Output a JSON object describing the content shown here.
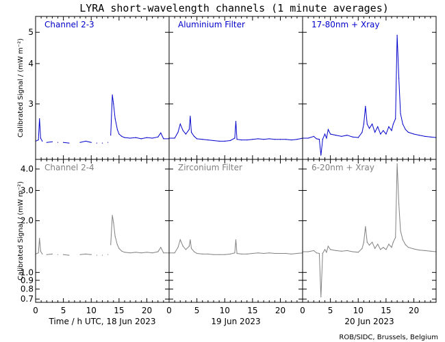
{
  "title": "LYRA short-wavelength channels (1 minute averages)",
  "credit": "ROB/SIDC, Brussels, Belgium",
  "colors": {
    "top": "#0000cc",
    "bottom": "#808080",
    "axes": "#000000"
  },
  "chart_data": {
    "type": "line",
    "grid": false,
    "rows": [
      {
        "ylabel": "Calibrated Signal / (mW m⁻²)",
        "yscale": "log",
        "ylim": [
          2.02,
          5.6
        ],
        "yticks": [
          3,
          4,
          5
        ],
        "ytick_labels": [
          "3",
          "4",
          "5"
        ]
      },
      {
        "ylabel": "Calibrated Signal / (mW m⁻²)",
        "yscale": "log",
        "ylim": [
          0.67,
          4.55
        ],
        "yticks": [
          0.7,
          0.8,
          0.9,
          1.0,
          2.0,
          3.0,
          4.0
        ],
        "ytick_labels": [
          "0.7",
          "0.8",
          "0.9",
          "1.0",
          "2.0",
          "3.0",
          "4.0"
        ]
      }
    ],
    "columns": [
      {
        "xlabel": "Time / h UTC, 18 Jun 2023",
        "xlim": [
          0,
          24
        ],
        "xticks": [
          0,
          5,
          10,
          15,
          20
        ],
        "xtick_labels": [
          "0",
          "5",
          "10",
          "15",
          "20"
        ]
      },
      {
        "xlabel": "19 Jun 2023",
        "xlim": [
          0,
          24
        ],
        "xticks": [
          0,
          5,
          10,
          15,
          20
        ],
        "xtick_labels": [
          "0",
          "5",
          "10",
          "15",
          "20"
        ]
      },
      {
        "xlabel": "20 Jun 2023",
        "xlim": [
          0,
          24
        ],
        "xticks": [
          0,
          5,
          10,
          15,
          20
        ],
        "xtick_labels": [
          "0",
          "5",
          "10",
          "15",
          "20"
        ]
      }
    ],
    "panels": [
      {
        "row": 0,
        "col": 0,
        "name": "Channel 2-3",
        "x": [
          0,
          0.5,
          0.7,
          0.9,
          1.2,
          2,
          3,
          4,
          5,
          6,
          8,
          9,
          10,
          11,
          12,
          13,
          13.5,
          13.8,
          14,
          14.3,
          14.7,
          15,
          15.5,
          16,
          17,
          18,
          19,
          20,
          21,
          22,
          22.5,
          23,
          24
        ],
        "y": [
          2.3,
          2.32,
          2.7,
          2.35,
          2.3,
          2.28,
          2.29,
          2.28,
          2.28,
          2.27,
          2.28,
          2.3,
          2.28,
          2.27,
          2.27,
          2.28,
          2.4,
          3.2,
          3.0,
          2.7,
          2.5,
          2.42,
          2.38,
          2.36,
          2.35,
          2.36,
          2.34,
          2.36,
          2.35,
          2.37,
          2.44,
          2.34,
          2.34
        ],
        "gaps": [
          [
            1.5,
            1.9
          ],
          [
            3.4,
            4.8
          ],
          [
            6.3,
            7.4
          ],
          [
            10.2,
            11.4
          ],
          [
            12.2,
            13.5
          ]
        ]
      },
      {
        "row": 0,
        "col": 1,
        "name": "Aluminium Filter",
        "x": [
          0,
          1,
          1.6,
          2,
          2.5,
          3,
          3.6,
          3.8,
          4,
          4.5,
          5,
          6,
          7,
          8,
          9,
          10,
          11,
          11.8,
          12,
          12.2,
          13,
          14,
          15,
          16,
          17,
          18,
          19,
          20,
          21,
          22,
          23,
          24
        ],
        "y": [
          2.35,
          2.35,
          2.45,
          2.6,
          2.48,
          2.42,
          2.5,
          2.75,
          2.45,
          2.38,
          2.34,
          2.33,
          2.32,
          2.31,
          2.3,
          2.3,
          2.31,
          2.35,
          2.65,
          2.33,
          2.32,
          2.32,
          2.33,
          2.34,
          2.33,
          2.34,
          2.33,
          2.33,
          2.33,
          2.32,
          2.33,
          2.35
        ]
      },
      {
        "row": 0,
        "col": 2,
        "name": "17-80nm + Xray",
        "x": [
          0,
          1,
          2,
          2.5,
          3,
          3.3,
          3.6,
          4,
          4.3,
          4.6,
          5,
          6,
          7,
          8,
          9,
          10,
          10.7,
          11,
          11.3,
          11.6,
          12,
          12.5,
          13,
          13.5,
          14,
          14.5,
          15,
          15.5,
          16,
          16.3,
          16.7,
          17,
          17.3,
          17.6,
          18,
          18.5,
          19,
          20,
          21,
          22,
          23,
          24
        ],
        "y": [
          2.35,
          2.35,
          2.38,
          2.34,
          2.33,
          2.08,
          2.33,
          2.42,
          2.35,
          2.5,
          2.42,
          2.4,
          2.38,
          2.4,
          2.37,
          2.36,
          2.45,
          2.6,
          2.95,
          2.6,
          2.52,
          2.6,
          2.45,
          2.55,
          2.42,
          2.48,
          2.42,
          2.55,
          2.48,
          2.6,
          2.7,
          4.9,
          3.6,
          2.8,
          2.6,
          2.5,
          2.45,
          2.42,
          2.4,
          2.38,
          2.37,
          2.36
        ]
      },
      {
        "row": 1,
        "col": 0,
        "name": "Channel 2-4",
        "x": [
          0,
          0.5,
          0.7,
          0.9,
          1.2,
          2,
          3,
          4,
          5,
          6,
          8,
          9,
          10,
          11,
          12,
          13,
          13.5,
          13.8,
          14,
          14.3,
          14.7,
          15,
          15.5,
          16,
          17,
          18,
          19,
          20,
          21,
          22,
          22.5,
          23,
          24
        ],
        "y": [
          1.28,
          1.3,
          1.58,
          1.33,
          1.28,
          1.27,
          1.28,
          1.27,
          1.27,
          1.26,
          1.27,
          1.28,
          1.27,
          1.26,
          1.26,
          1.27,
          1.45,
          2.15,
          1.95,
          1.62,
          1.45,
          1.38,
          1.33,
          1.31,
          1.3,
          1.31,
          1.3,
          1.31,
          1.3,
          1.32,
          1.4,
          1.3,
          1.3
        ],
        "gaps": [
          [
            1.5,
            1.9
          ],
          [
            3.4,
            4.8
          ],
          [
            6.3,
            7.4
          ],
          [
            10.2,
            11.4
          ],
          [
            12.2,
            13.5
          ]
        ]
      },
      {
        "row": 1,
        "col": 1,
        "name": "Zirconium Filter",
        "x": [
          0,
          1,
          1.6,
          2,
          2.5,
          3,
          3.6,
          3.8,
          4,
          4.5,
          5,
          6,
          7,
          8,
          9,
          10,
          11,
          11.8,
          12,
          12.2,
          13,
          14,
          15,
          16,
          17,
          18,
          19,
          20,
          21,
          22,
          23,
          24
        ],
        "y": [
          1.3,
          1.3,
          1.4,
          1.55,
          1.42,
          1.36,
          1.42,
          1.55,
          1.38,
          1.32,
          1.29,
          1.28,
          1.28,
          1.27,
          1.27,
          1.27,
          1.28,
          1.3,
          1.55,
          1.29,
          1.28,
          1.28,
          1.29,
          1.3,
          1.29,
          1.3,
          1.29,
          1.29,
          1.29,
          1.28,
          1.29,
          1.3
        ]
      },
      {
        "row": 1,
        "col": 2,
        "name": "6-20nm + Xray",
        "x": [
          0,
          1,
          2,
          2.5,
          3,
          3.3,
          3.6,
          4,
          4.3,
          4.6,
          5,
          6,
          7,
          8,
          9,
          10,
          10.7,
          11,
          11.3,
          11.6,
          12,
          12.5,
          13,
          13.5,
          14,
          14.5,
          15,
          15.5,
          16,
          16.3,
          16.7,
          17,
          17.3,
          17.6,
          18,
          18.5,
          19,
          20,
          21,
          22,
          23,
          24
        ],
        "y": [
          1.32,
          1.32,
          1.34,
          1.3,
          1.29,
          0.72,
          1.29,
          1.36,
          1.31,
          1.42,
          1.36,
          1.34,
          1.33,
          1.34,
          1.32,
          1.31,
          1.38,
          1.5,
          1.85,
          1.5,
          1.44,
          1.5,
          1.38,
          1.46,
          1.36,
          1.4,
          1.36,
          1.46,
          1.4,
          1.5,
          1.6,
          4.3,
          2.5,
          1.75,
          1.55,
          1.45,
          1.4,
          1.37,
          1.35,
          1.34,
          1.33,
          1.32
        ]
      }
    ]
  }
}
